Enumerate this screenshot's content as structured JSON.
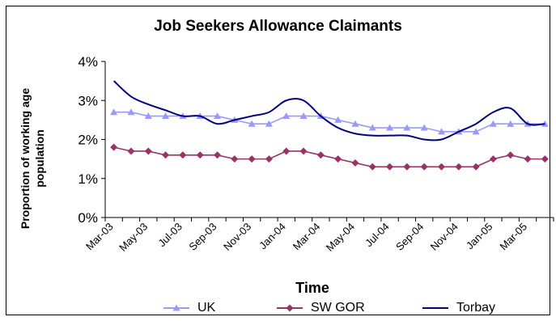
{
  "chart_data": {
    "type": "line",
    "title": "Job Seekers Allowance Claimants",
    "xlabel": "Time",
    "ylabel": "Proportion of working age population",
    "ylabel_lines": [
      "Proportion of working age",
      "population"
    ],
    "ylim": [
      0,
      4
    ],
    "yticks": [
      "0%",
      "1%",
      "2%",
      "3%",
      "4%"
    ],
    "grid": false,
    "legend_position": "bottom",
    "categories": [
      "Mar-03",
      "Apr-03",
      "May-03",
      "Jun-03",
      "Jul-03",
      "Aug-03",
      "Sep-03",
      "Oct-03",
      "Nov-03",
      "Dec-03",
      "Jan-04",
      "Feb-04",
      "Mar-04",
      "Apr-04",
      "May-04",
      "Jun-04",
      "Jul-04",
      "Aug-04",
      "Sep-04",
      "Oct-04",
      "Nov-04",
      "Dec-04",
      "Jan-05",
      "Feb-05",
      "Mar-05",
      "Apr-05"
    ],
    "xtick_labels": [
      "Mar-03",
      "May-03",
      "Jul-03",
      "Sep-03",
      "Nov-03",
      "Jan-04",
      "Mar-04",
      "May-04",
      "Jul-04",
      "Sep-04",
      "Nov-04",
      "Jan-05",
      "Mar-05"
    ],
    "series": [
      {
        "name": "UK",
        "color": "#9999ff",
        "marker": "triangle",
        "values": [
          2.7,
          2.7,
          2.6,
          2.6,
          2.6,
          2.6,
          2.6,
          2.5,
          2.4,
          2.4,
          2.6,
          2.6,
          2.6,
          2.5,
          2.4,
          2.3,
          2.3,
          2.3,
          2.3,
          2.2,
          2.2,
          2.2,
          2.4,
          2.4,
          2.4,
          2.4
        ]
      },
      {
        "name": "SW GOR",
        "color": "#993366",
        "marker": "diamond",
        "values": [
          1.8,
          1.7,
          1.7,
          1.6,
          1.6,
          1.6,
          1.6,
          1.5,
          1.5,
          1.5,
          1.7,
          1.7,
          1.6,
          1.5,
          1.4,
          1.3,
          1.3,
          1.3,
          1.3,
          1.3,
          1.3,
          1.3,
          1.5,
          1.6,
          1.5,
          1.5
        ]
      },
      {
        "name": "Torbay",
        "color": "#000080",
        "marker": "none",
        "values": [
          3.5,
          3.1,
          2.9,
          2.75,
          2.6,
          2.6,
          2.4,
          2.5,
          2.6,
          2.7,
          3.0,
          3.0,
          2.6,
          2.3,
          2.15,
          2.1,
          2.1,
          2.1,
          2.0,
          2.0,
          2.2,
          2.4,
          2.7,
          2.8,
          2.4,
          2.4
        ]
      }
    ]
  }
}
